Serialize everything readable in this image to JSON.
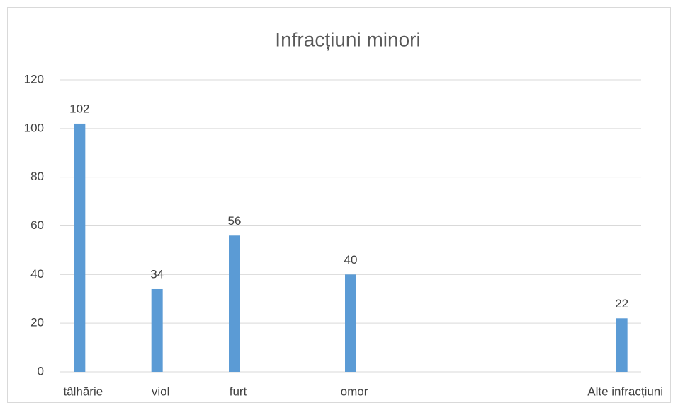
{
  "chart_data": {
    "type": "bar",
    "title": "Infracțiuni minori",
    "categories": [
      "tâlhărie",
      null,
      "viol",
      null,
      "furt",
      null,
      null,
      "omor",
      null,
      null,
      null,
      null,
      null,
      null,
      "Alte infracțiuni"
    ],
    "values": [
      102,
      null,
      34,
      null,
      56,
      null,
      null,
      40,
      null,
      null,
      null,
      null,
      null,
      null,
      22
    ],
    "color": "#5b9bd5",
    "ylim": [
      0,
      120
    ],
    "yticks": [
      0,
      20,
      40,
      60,
      80,
      100,
      120
    ],
    "grid": true
  }
}
